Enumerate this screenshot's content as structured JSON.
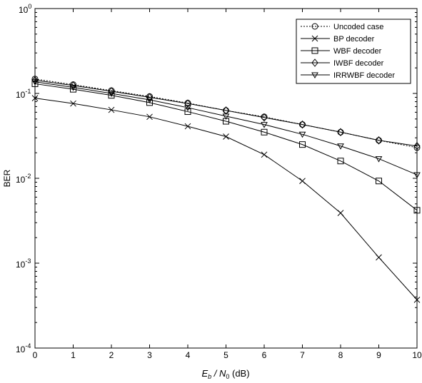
{
  "chart_data": {
    "type": "line",
    "xlabel": {
      "main": "E",
      "sub1": "b",
      "mid": " / N",
      "sub2": "0",
      "unit": "  (dB)"
    },
    "ylabel": "BER",
    "x_ticks": [
      "0",
      "1",
      "2",
      "3",
      "4",
      "5",
      "6",
      "7",
      "8",
      "9",
      "10"
    ],
    "y_ticks": [
      {
        "base": "10",
        "exp": "0"
      },
      {
        "base": "10",
        "exp": "-1"
      },
      {
        "base": "10",
        "exp": "-2"
      },
      {
        "base": "10",
        "exp": "-3"
      },
      {
        "base": "10",
        "exp": "-4"
      }
    ],
    "xlim": [
      0,
      10
    ],
    "ylim": [
      0.0001,
      1
    ],
    "yscale": "log",
    "grid": false,
    "legend_position": "top-right",
    "x": [
      0,
      1,
      2,
      3,
      4,
      5,
      6,
      7,
      8,
      9,
      10
    ],
    "series": [
      {
        "name": "Uncoded case",
        "marker": "circle",
        "dash": "dotted",
        "values": [
          0.148,
          0.127,
          0.108,
          0.092,
          0.077,
          0.063,
          0.053,
          0.043,
          0.035,
          0.028,
          0.023
        ]
      },
      {
        "name": "BP decoder",
        "marker": "x",
        "dash": "solid",
        "values": [
          0.088,
          0.076,
          0.064,
          0.053,
          0.041,
          0.031,
          0.019,
          0.0093,
          0.0039,
          0.00117,
          0.00037
        ]
      },
      {
        "name": "WBF decoder",
        "marker": "square",
        "dash": "solid",
        "values": [
          0.13,
          0.112,
          0.095,
          0.078,
          0.061,
          0.047,
          0.035,
          0.025,
          0.016,
          0.0093,
          0.0042
        ]
      },
      {
        "name": "IWBF decoder",
        "marker": "diamond",
        "dash": "solid",
        "values": [
          0.143,
          0.124,
          0.106,
          0.09,
          0.076,
          0.063,
          0.052,
          0.043,
          0.035,
          0.028,
          0.024
        ]
      },
      {
        "name": "IRRWBF decoder",
        "marker": "triangle-down",
        "dash": "solid",
        "values": [
          0.137,
          0.118,
          0.1,
          0.084,
          0.068,
          0.054,
          0.043,
          0.033,
          0.024,
          0.017,
          0.011
        ]
      }
    ]
  }
}
